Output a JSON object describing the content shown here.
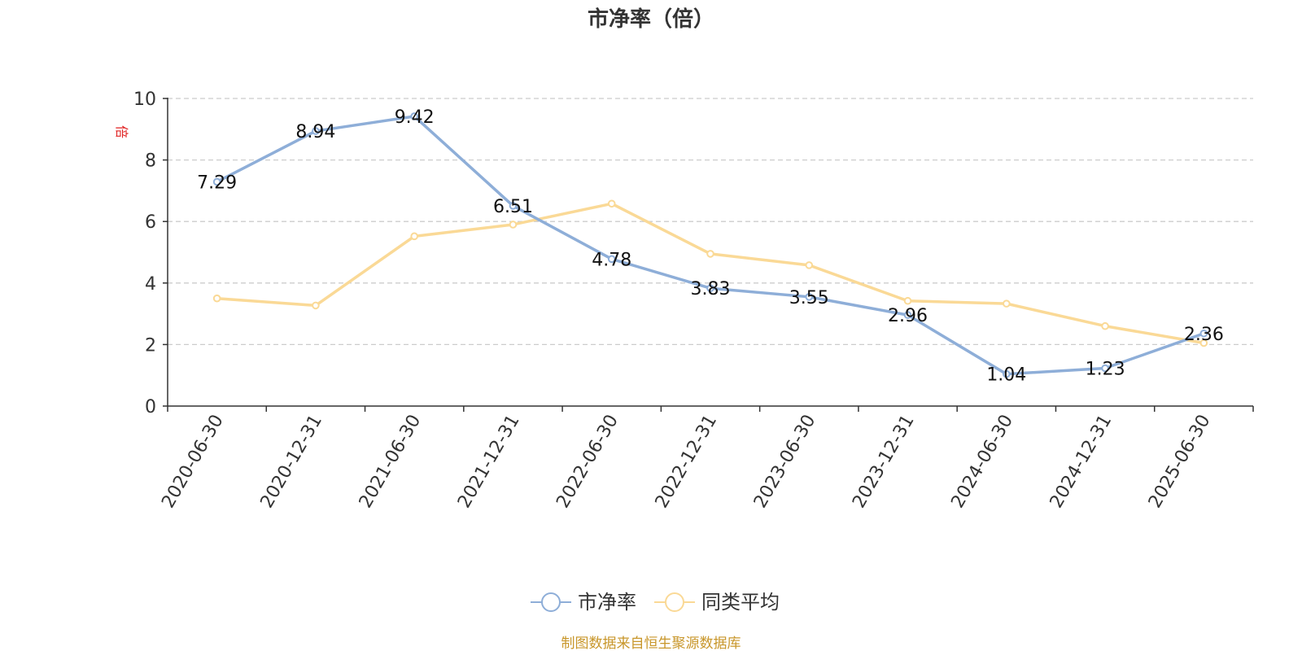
{
  "chart_data": {
    "type": "line",
    "title": "市净率（倍）",
    "ylabel": "倍",
    "ylim": [
      0,
      10
    ],
    "yticks": [
      0,
      2,
      4,
      6,
      8,
      10
    ],
    "categories": [
      "2020-06-30",
      "2020-12-31",
      "2021-06-30",
      "2021-12-31",
      "2022-06-30",
      "2022-12-31",
      "2023-06-30",
      "2023-12-31",
      "2024-06-30",
      "2024-12-31",
      "2025-06-30"
    ],
    "series": [
      {
        "name": "市净率",
        "color": "#8eaed8",
        "values": [
          7.29,
          8.94,
          9.42,
          6.51,
          4.78,
          3.83,
          3.55,
          2.96,
          1.04,
          1.23,
          2.36
        ],
        "labels": [
          "7.29",
          "8.94",
          "9.42",
          "6.51",
          "4.78",
          "3.83",
          "3.55",
          "2.96",
          "1.04",
          "1.23",
          "2.36"
        ]
      },
      {
        "name": "同类平均",
        "color": "#fad996",
        "values": [
          3.5,
          3.27,
          5.52,
          5.9,
          6.58,
          4.95,
          4.58,
          3.42,
          3.33,
          2.6,
          2.05
        ]
      }
    ],
    "grid": true,
    "legend": "bottom-center"
  },
  "source_note": "制图数据来自恒生聚源数据库"
}
